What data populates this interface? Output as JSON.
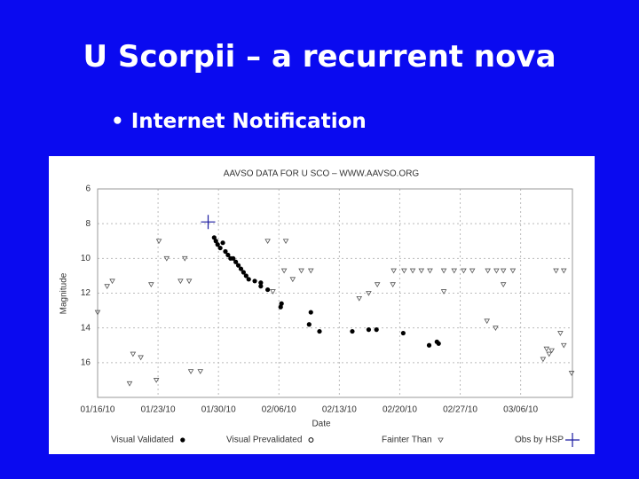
{
  "slide": {
    "title": "U Scorpii – a recurrent nova",
    "bullet": "Internet Notification"
  },
  "chart_data": {
    "type": "scatter",
    "title": "AAVSO DATA FOR U SCO – WWW.AAVSO.ORG",
    "x_label": "Date",
    "y_label": "Magnitude",
    "y_inverted": true,
    "grid": true,
    "xlim": [
      0,
      55
    ],
    "ylim": [
      6,
      18
    ],
    "xticks": [
      {
        "value": 0,
        "label": "01/16/10"
      },
      {
        "value": 7,
        "label": "01/23/10"
      },
      {
        "value": 14,
        "label": "01/30/10"
      },
      {
        "value": 21,
        "label": "02/06/10"
      },
      {
        "value": 28,
        "label": "02/13/10"
      },
      {
        "value": 35,
        "label": "02/20/10"
      },
      {
        "value": 42,
        "label": "02/27/10"
      },
      {
        "value": 49,
        "label": "03/06/10"
      }
    ],
    "yticks": [
      6,
      8,
      10,
      12,
      14,
      16
    ],
    "series": [
      {
        "name": "Visual Validated",
        "color": "#000000",
        "marker": "dot",
        "x": [
          13.5,
          13.7,
          13.9,
          14.2,
          14.5,
          14.8,
          15.1,
          15.4,
          15.7,
          16.0,
          16.3,
          16.6,
          16.9,
          17.2,
          17.5,
          18.2,
          18.9,
          18.9,
          19.7,
          21.3,
          21.2,
          24.7,
          24.5,
          25.7,
          29.5,
          31.4,
          32.3,
          35.4,
          38.4,
          39.3,
          39.5
        ],
        "values": [
          8.8,
          9.0,
          9.2,
          9.4,
          9.1,
          9.6,
          9.8,
          10.0,
          10.0,
          10.2,
          10.4,
          10.6,
          10.8,
          11.0,
          11.2,
          11.3,
          11.4,
          11.6,
          11.8,
          12.6,
          12.8,
          13.1,
          13.8,
          14.2,
          14.2,
          14.1,
          14.1,
          14.3,
          15.0,
          14.8,
          14.9
        ]
      },
      {
        "name": "Visual Prevalidated",
        "color": "#000000",
        "marker": "ring",
        "x": [],
        "values": []
      },
      {
        "name": "Fainter Than",
        "color": "#555555",
        "marker": "triangle",
        "x": [
          1.1,
          1.7,
          0,
          3.7,
          4.1,
          5.0,
          6.2,
          6.8,
          7.1,
          8.0,
          9.6,
          10.1,
          10.6,
          10.8,
          11.9,
          19.7,
          20.3,
          21.6,
          21.8,
          22.6,
          23.6,
          24.7,
          30.3,
          31.4,
          32.4,
          34.2,
          34.3,
          35.5,
          36.5,
          37.5,
          38.5,
          40.1,
          40.1,
          41.3,
          42.4,
          43.4,
          45.2,
          45.1,
          46.1,
          46.2,
          47.0,
          47.0,
          48.1,
          51.6,
          52.0,
          52.3,
          52.6,
          53.1,
          53.6,
          54.0,
          54.0,
          54.9
        ],
        "values": [
          11.6,
          11.3,
          13.1,
          17.2,
          15.5,
          15.7,
          11.5,
          17.0,
          9.0,
          10.0,
          11.3,
          10.0,
          11.3,
          16.5,
          16.5,
          9.0,
          11.9,
          10.7,
          9.0,
          11.2,
          10.7,
          10.7,
          12.3,
          12.0,
          11.5,
          11.5,
          10.7,
          10.7,
          10.7,
          10.7,
          10.7,
          10.7,
          11.9,
          10.7,
          10.7,
          10.7,
          10.7,
          13.6,
          14.0,
          10.7,
          10.7,
          11.5,
          10.7,
          15.8,
          15.2,
          15.5,
          15.3,
          10.7,
          14.3,
          10.7,
          15.0,
          16.6
        ]
      },
      {
        "name": "Obs by HSP",
        "color": "#1a1aa0",
        "marker": "plus",
        "x": [
          12.8
        ],
        "values": [
          7.9
        ]
      }
    ]
  }
}
